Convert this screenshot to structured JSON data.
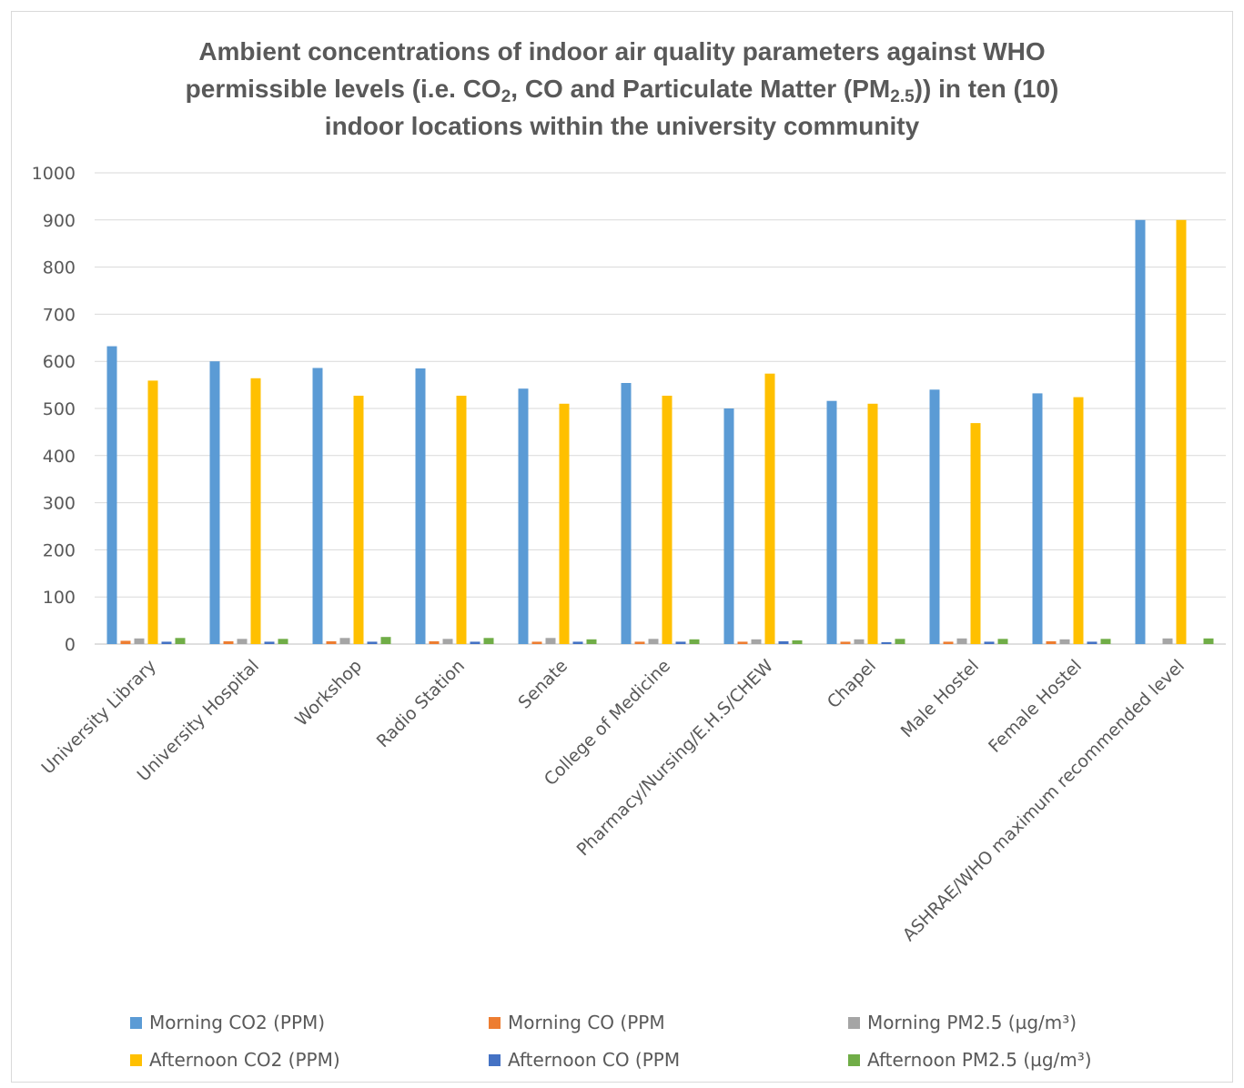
{
  "chart_data": {
    "type": "bar",
    "title_lines": [
      [
        "Ambient concentrations of indoor air quality parameters against WHO"
      ],
      [
        "permissible levels  (i.e. CO",
        "2",
        ", CO and Particulate Matter (PM",
        "2.5",
        ")) in ten (10)"
      ],
      [
        "indoor locations within the university community"
      ]
    ],
    "categories": [
      "University Library",
      "University Hospital",
      "Workshop",
      "Radio Station",
      "Senate",
      "College of Medicine",
      "Pharmacy/Nursing/E.H.S/CHEW",
      "Chapel",
      "Male Hostel",
      "Female Hostel",
      "ASHRAE/WHO maximum recommended level"
    ],
    "ylim": [
      0,
      1000
    ],
    "yticks": [
      "0",
      "100",
      "200",
      "300",
      "400",
      "500",
      "600",
      "700",
      "800",
      "900",
      "1000"
    ],
    "grid": true,
    "legend_position": "bottom",
    "series": [
      {
        "name": "Morning CO2 (PPM)",
        "color": "#5B9BD5",
        "values": [
          632,
          600,
          586,
          585,
          542,
          554,
          500,
          516,
          540,
          532,
          900
        ]
      },
      {
        "name": "Morning CO (PPM",
        "color": "#ED7D31",
        "values": [
          7,
          6,
          6,
          6,
          5,
          5,
          5,
          5,
          5,
          6,
          0
        ]
      },
      {
        "name": "Morning PM2.5 (µg/m³)",
        "color": "#A5A5A5",
        "values": [
          12,
          11,
          13,
          11,
          13,
          11,
          10,
          10,
          12,
          10,
          12
        ]
      },
      {
        "name": "Afternoon CO2 (PPM)",
        "color": "#FFC000",
        "values": [
          559,
          564,
          527,
          527,
          510,
          527,
          574,
          510,
          469,
          524,
          900
        ]
      },
      {
        "name": "Afternoon CO (PPM",
        "color": "#4472C4",
        "values": [
          5,
          5,
          5,
          5,
          5,
          5,
          6,
          4,
          5,
          5,
          0
        ]
      },
      {
        "name": "Afternoon PM2.5 (µg/m³)",
        "color": "#70AD47",
        "values": [
          13,
          11,
          15,
          13,
          10,
          10,
          8,
          11,
          11,
          11,
          12
        ]
      }
    ]
  }
}
